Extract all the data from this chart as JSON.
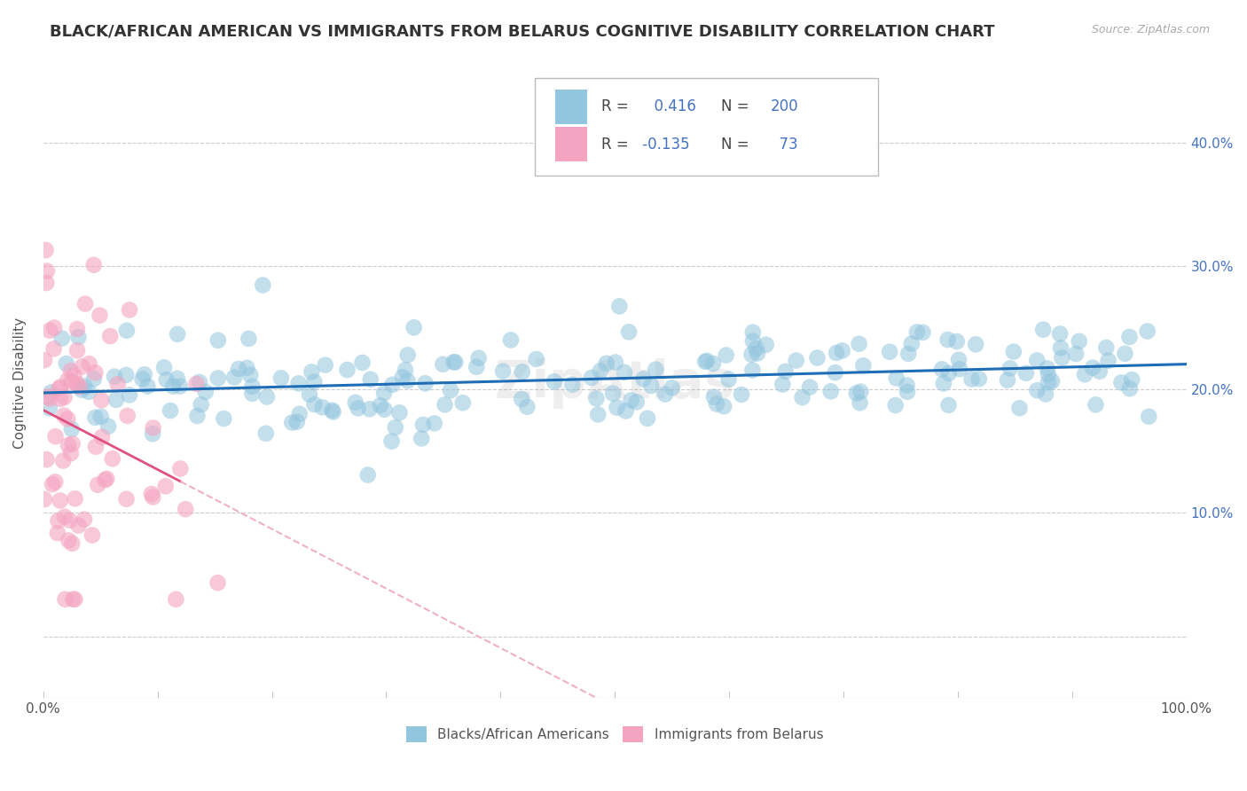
{
  "title": "BLACK/AFRICAN AMERICAN VS IMMIGRANTS FROM BELARUS COGNITIVE DISABILITY CORRELATION CHART",
  "source": "Source: ZipAtlas.com",
  "ylabel": "Cognitive Disability",
  "xlabel": "",
  "xlim": [
    0.0,
    1.0
  ],
  "ylim": [
    -0.05,
    0.46
  ],
  "blue_R": 0.416,
  "blue_N": 200,
  "pink_R": -0.135,
  "pink_N": 73,
  "blue_color": "#92c5de",
  "pink_color": "#f4a4c0",
  "blue_line_color": "#1f6db5",
  "pink_line_color": "#e05080",
  "pink_line_dashed_color": "#f0b0c8",
  "legend_label_blue": "Blacks/African Americans",
  "legend_label_pink": "Immigrants from Belarus",
  "watermark": "ZipAtlas",
  "xtick_positions": [
    0.0,
    0.1,
    0.2,
    0.3,
    0.4,
    0.5,
    0.6,
    0.7,
    0.8,
    0.9,
    1.0
  ],
  "ytick_positions": [
    0.0,
    0.1,
    0.2,
    0.3,
    0.4
  ],
  "right_ytick_labels": [
    "",
    "10.0%",
    "20.0%",
    "30.0%",
    "40.0%"
  ],
  "grid_color": "#cccccc",
  "background_color": "#ffffff",
  "title_fontsize": 13,
  "axis_label_fontsize": 11,
  "tick_fontsize": 11,
  "blue_scatter_seed": 42,
  "pink_scatter_seed": 7
}
